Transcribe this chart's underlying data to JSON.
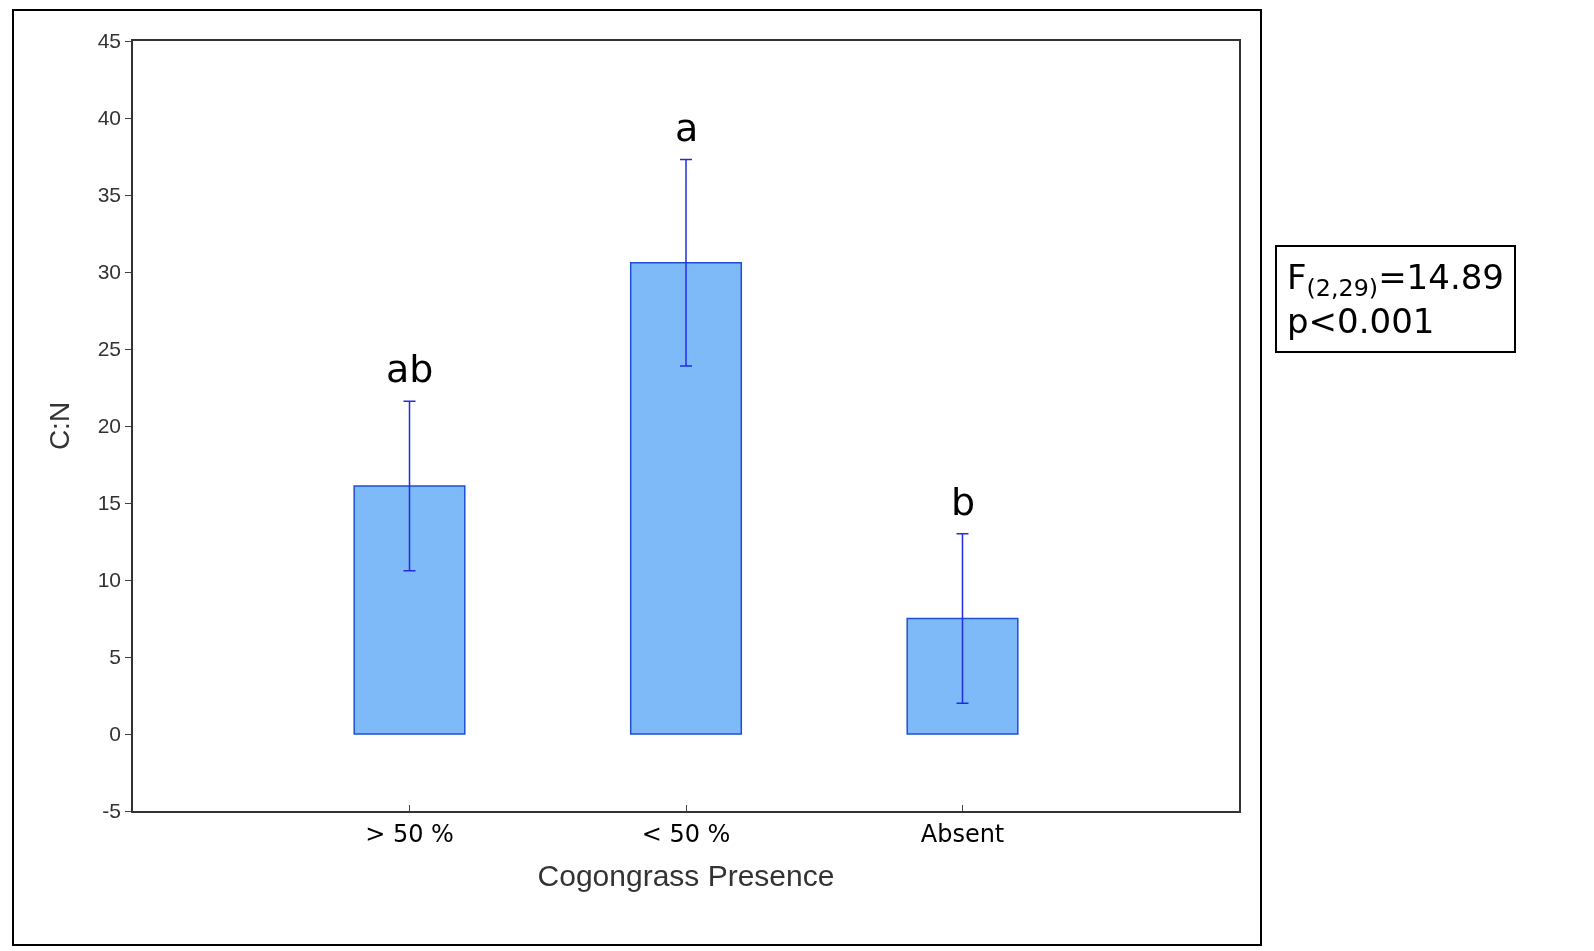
{
  "chart_data": {
    "type": "bar",
    "xlabel": "Cogongrass Presence",
    "ylabel": "C:N",
    "categories": [
      "> 50 %",
      "< 50 %",
      "Absent"
    ],
    "values": [
      16.1,
      30.6,
      7.5
    ],
    "errors": [
      5.5,
      6.7,
      5.5
    ],
    "color": "#7dbaf7",
    "ylim": [
      -5,
      45
    ],
    "yticks": [
      -5,
      0,
      5,
      10,
      15,
      20,
      25,
      30,
      35,
      40,
      45
    ],
    "grid": false,
    "annotations": [
      {
        "text": "ab",
        "x": "> 50 %",
        "y": 21.6
      },
      {
        "text": "a",
        "x": "< 50 %",
        "y": 37.3
      },
      {
        "text": "b",
        "x": "Absent",
        "y": 13
      },
      "F$_{(2,29)}$=14.89\np<0.001"
    ]
  }
}
